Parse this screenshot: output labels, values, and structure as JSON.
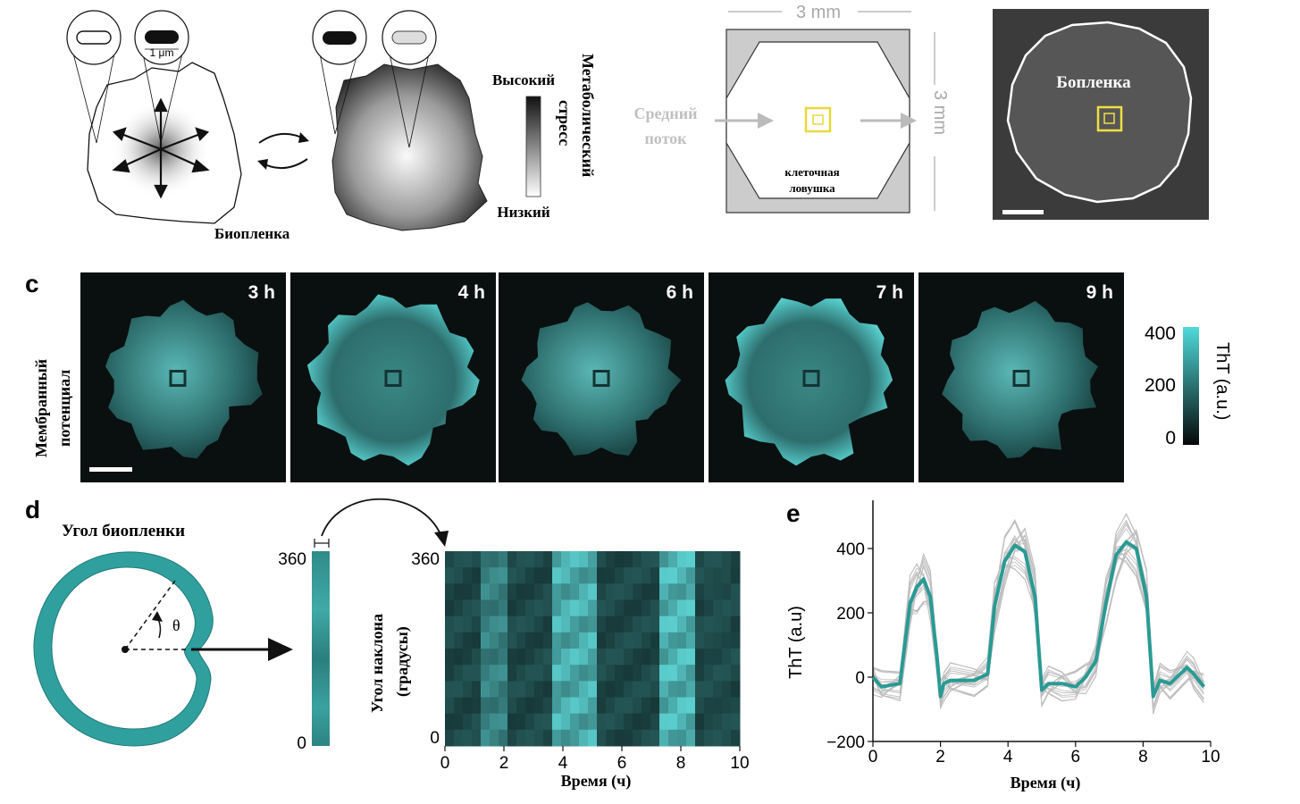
{
  "panel_a": {
    "scale_label": "1 μm",
    "biofilm_label": "Биопленка",
    "high_label": "Высокий",
    "low_label": "Низкий",
    "stress_label_line1": "Метаболический",
    "stress_label_line2": "стресс"
  },
  "panel_b": {
    "width_label": "3 mm",
    "height_label": "3 mm",
    "flow_line1": "Средний",
    "flow_line2": "поток",
    "trap_line1": "клеточная",
    "trap_line2": "ловушка",
    "photo_label": "Бопленка"
  },
  "panel_c": {
    "letter": "c",
    "frames": [
      "3 h",
      "4 h",
      "6 h",
      "7 h",
      "9 h"
    ],
    "ylabel_line1": "Мембранный",
    "ylabel_line2": "потенциал",
    "colorbar_label": "ThT (a.u.)",
    "colorbar_ticks": [
      "400",
      "200",
      "0"
    ],
    "colors": {
      "cyan": "#3fd4d4",
      "dark": "#0a0f10"
    }
  },
  "panel_d": {
    "letter": "d",
    "title": "Угол биопленки",
    "theta": "θ",
    "strip_ticks": [
      "360",
      "0"
    ],
    "ylabel_line1": "Угол наклона",
    "ylabel_line2": "(градусы)",
    "kymo_yticks": [
      "360",
      "0"
    ],
    "xlabel": "Время (ч)"
  },
  "panel_e": {
    "letter": "e"
  },
  "chart_data": {
    "type": "line",
    "xlabel": "Время (ч)",
    "ylabel": "ThT (a.u)",
    "xlim": [
      0,
      10
    ],
    "ylim": [
      -200,
      550
    ],
    "xticks": [
      "0",
      "2",
      "4",
      "6",
      "8",
      "10"
    ],
    "yticks": [
      "400",
      "200",
      "0",
      "−200"
    ],
    "grid": false,
    "series": [
      {
        "color": "#2a9a94",
        "x": [
          0,
          0.25,
          0.8,
          1.1,
          1.3,
          1.5,
          1.7,
          1.9,
          2.0,
          2.1,
          2.3,
          3.0,
          3.4,
          3.6,
          3.9,
          4.2,
          4.5,
          4.8,
          5.0,
          5.2,
          5.6,
          6.0,
          6.3,
          6.6,
          6.9,
          7.2,
          7.5,
          7.8,
          8.1,
          8.3,
          8.5,
          8.8,
          9.3,
          9.5,
          9.8
        ],
        "values": [
          0,
          -30,
          -20,
          230,
          280,
          305,
          250,
          60,
          -60,
          -20,
          -10,
          -10,
          10,
          220,
          360,
          410,
          390,
          250,
          -40,
          -20,
          -20,
          -30,
          0,
          50,
          230,
          380,
          420,
          400,
          250,
          -60,
          -10,
          -20,
          30,
          10,
          -30
        ]
      }
    ]
  }
}
